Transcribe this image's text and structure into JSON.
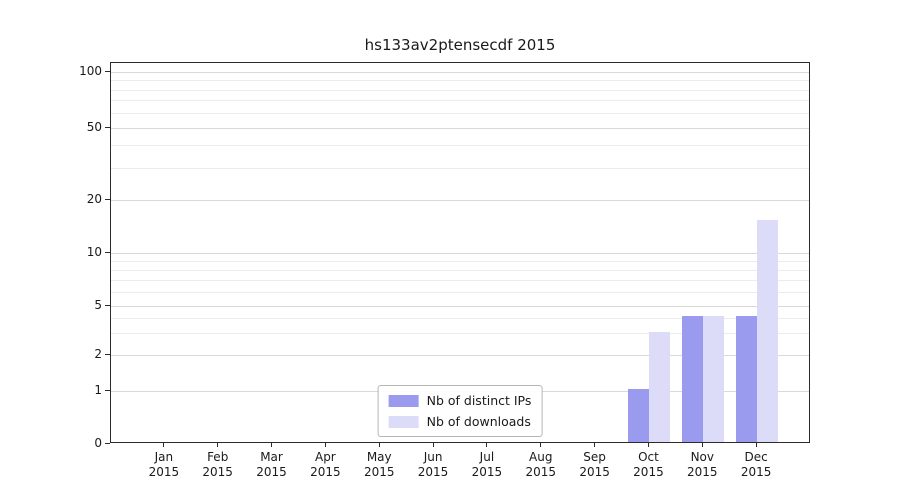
{
  "chart_data": {
    "type": "bar",
    "title": "hs133av2ptensecdf 2015",
    "categories": [
      "Jan",
      "Feb",
      "Mar",
      "Apr",
      "May",
      "Jun",
      "Jul",
      "Aug",
      "Sep",
      "Oct",
      "Nov",
      "Dec"
    ],
    "tick_year": "2015",
    "series": [
      {
        "name": "Nb of distinct IPs",
        "color": "#9a9aee",
        "values": [
          0,
          0,
          0,
          0,
          0,
          0,
          0,
          0,
          0,
          1,
          4,
          4
        ]
      },
      {
        "name": "Nb of downloads",
        "color": "#dcdcf9",
        "values": [
          0,
          0,
          0,
          0,
          0,
          0,
          0,
          0,
          0,
          3,
          4,
          15
        ]
      }
    ],
    "yticks": [
      0,
      1,
      2,
      5,
      10,
      20,
      50,
      100
    ],
    "minor_yticks": [
      3,
      4,
      6,
      7,
      8,
      9,
      30,
      40,
      60,
      70,
      80,
      90
    ],
    "ylim": [
      0,
      107
    ],
    "xlabel": "",
    "ylabel": "",
    "grid": "horizontal",
    "legend_position": "bottom-center",
    "scale": "symlog"
  }
}
